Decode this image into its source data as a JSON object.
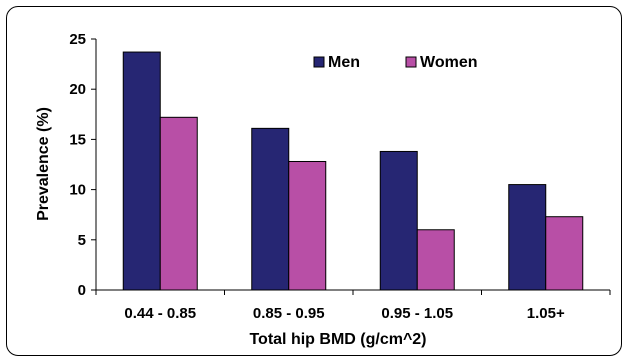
{
  "chart_data": {
    "type": "bar",
    "title": "",
    "xlabel": "Total hip BMD (g/cm^2)",
    "ylabel": "Prevalence (%)",
    "ylim": [
      0,
      25
    ],
    "yticks": [
      0,
      5,
      10,
      15,
      20,
      25
    ],
    "grid": false,
    "legend_position": "top-right",
    "categories": [
      "0.44 - 0.85",
      "0.85 - 0.95",
      "0.95 - 1.05",
      "1.05+"
    ],
    "series": [
      {
        "name": "Men",
        "color": "#262673",
        "values": [
          23.7,
          16.1,
          13.8,
          10.5
        ]
      },
      {
        "name": "Women",
        "color": "#b84fa6",
        "values": [
          17.2,
          12.8,
          6.0,
          7.3
        ]
      }
    ]
  }
}
